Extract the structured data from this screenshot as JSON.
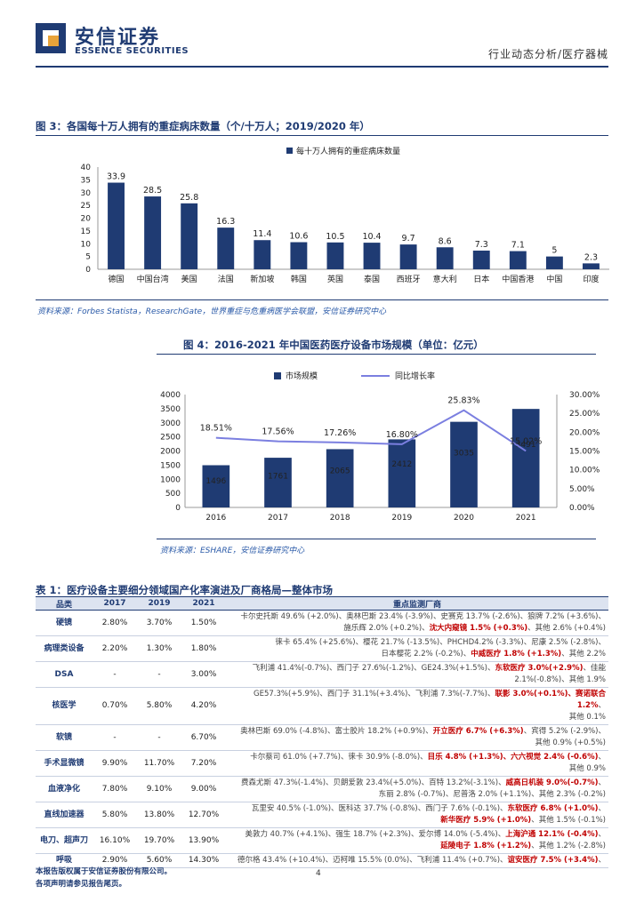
{
  "header": {
    "brand_cn": "安信证券",
    "brand_en": "ESSENCE SECURITIES",
    "report_type": "行业动态分析/医疗器械"
  },
  "figure3": {
    "title": "图 3：各国每十万人拥有的重症病床数量（个/十万人；2019/2020 年）",
    "source": "资料来源：Forbes Statista，ResearchGate，世界重症与危重病医学会联盟，安信证券研究中心",
    "chart_data": {
      "type": "bar",
      "categories": [
        "德国",
        "中国台湾",
        "美国",
        "法国",
        "新加坡",
        "韩国",
        "英国",
        "泰国",
        "西班牙",
        "意大利",
        "日本",
        "中国香港",
        "中国",
        "印度"
      ],
      "series": [
        {
          "name": "每十万人拥有的重症病床数量",
          "values": [
            33.9,
            28.5,
            25.8,
            16.3,
            11.4,
            10.6,
            10.5,
            10.4,
            9.7,
            8.6,
            7.3,
            7.1,
            5,
            2.3
          ]
        }
      ],
      "value_labels": [
        "33.9",
        "28.5",
        "25.8",
        "16.3",
        "11.4",
        "10.6",
        "10.5",
        "10.4",
        "9.7",
        "8.6",
        "7.3",
        "7.1",
        "5",
        "2.3"
      ],
      "yticks": [
        "0",
        "5",
        "10",
        "15",
        "20",
        "25",
        "30",
        "35",
        "40"
      ],
      "ylim": [
        0,
        40
      ],
      "color": "#1f3b73",
      "legend": "top"
    }
  },
  "figure4": {
    "title": "图 4：2016-2021 年中国医药医疗设备市场规模（单位：亿元）",
    "source": "资料来源：ESHARE，安信证券研究中心",
    "chart_data": {
      "type": "bar",
      "categories": [
        "2016",
        "2017",
        "2018",
        "2019",
        "2020",
        "2021"
      ],
      "series": [
        {
          "name": "市场规模",
          "type": "bar",
          "values": [
            1496,
            1761,
            2065,
            2412,
            3035,
            3491
          ],
          "labels": [
            "1496",
            "1761",
            "2065",
            "2412",
            "3035",
            "3491"
          ]
        },
        {
          "name": "同比增长率",
          "type": "line",
          "values": [
            18.51,
            17.56,
            17.26,
            16.8,
            25.83,
            15.02
          ],
          "labels": [
            "18.51%",
            "17.56%",
            "17.26%",
            "16.80%",
            "25.83%",
            "15.02%"
          ]
        }
      ],
      "yticks_left": [
        "0",
        "500",
        "1000",
        "1500",
        "2000",
        "2500",
        "3000",
        "3500",
        "4000"
      ],
      "yticks_right": [
        "0.00%",
        "5.00%",
        "10.00%",
        "15.00%",
        "20.00%",
        "25.00%",
        "30.00%"
      ],
      "ylim_left": [
        0,
        4000
      ],
      "ylim_right": [
        0,
        30
      ],
      "bar_color": "#1f3b73",
      "line_color": "#7b7fe0",
      "legend": "top"
    }
  },
  "table1": {
    "title": "表 1：医疗设备主要细分领域国产化率演进及厂商格局—整体市场",
    "headers": [
      "品类",
      "2017",
      "2019",
      "2021",
      "重点监测厂商"
    ],
    "rows": [
      {
        "cat": "硬镜",
        "y2017": "2.80%",
        "y2019": "3.70%",
        "y2021": "1.50%",
        "lines": [
          [
            {
              "t": "卡尔史托斯 49.6% (+2.0%)、奥林巴斯 23.4% (-3.9%)、史赛克 13.7% (-2.6%)、狼牌 7.2% (+3.6%)、"
            }
          ],
          [
            {
              "t": "施乐辉 2.0% (+0.2%)、"
            },
            {
              "t": "沈大内窥镜 1.5% (+0.3%)",
              "r": true
            },
            {
              "t": "、其他 2.6% (+0.4%)"
            }
          ]
        ]
      },
      {
        "cat": "病理类设备",
        "y2017": "2.20%",
        "y2019": "1.30%",
        "y2021": "1.80%",
        "lines": [
          [
            {
              "t": "徕卡 65.4% (+25.6%)、樱花 21.7% (-13.5%)、PHCHD4.2% (-3.3%)、尼康 2.5% (-2.8%)、"
            }
          ],
          [
            {
              "t": "日本樱花 2.2% (-0.2%)、"
            },
            {
              "t": "中威医疗 1.8% (+1.3%)",
              "r": true
            },
            {
              "t": "、其他 2.2%"
            }
          ]
        ]
      },
      {
        "cat": "DSA",
        "y2017": "-",
        "y2019": "-",
        "y2021": "3.00%",
        "lines": [
          [
            {
              "t": "飞利浦 41.4%(-0.7%)、西门子 27.6%(-1.2%)、GE24.3%(+1.5%)、"
            },
            {
              "t": "东软医疗 3.0%(+2.9%)",
              "r": true
            },
            {
              "t": "、佳能"
            }
          ],
          [
            {
              "t": "2.1%(-0.8%)、其他 1.9%"
            }
          ]
        ]
      },
      {
        "cat": "核医学",
        "y2017": "0.70%",
        "y2019": "5.80%",
        "y2021": "4.20%",
        "lines": [
          [
            {
              "t": "GE57.3%(+5.9%)、西门子 31.1%(+3.4%)、飞利浦 7.3%(-7.7%)、"
            },
            {
              "t": "联影 3.0%(+0.1%)、赛诺联合 1.2%",
              "r": true
            },
            {
              "t": "、"
            }
          ],
          [
            {
              "t": "其他 0.1%"
            }
          ]
        ]
      },
      {
        "cat": "软镜",
        "y2017": "-",
        "y2019": "-",
        "y2021": "6.70%",
        "lines": [
          [
            {
              "t": "奥林巴斯 69.0% (-4.8%)、富士胶片 18.2% (+0.9%)、"
            },
            {
              "t": "开立医疗 6.7% (+6.3%)",
              "r": true
            },
            {
              "t": "、宾得 5.2% (-2.9%)、"
            }
          ],
          [
            {
              "t": "其他 0.9% (+0.5%)"
            }
          ]
        ]
      },
      {
        "cat": "手术显微镜",
        "y2017": "9.90%",
        "y2019": "11.70%",
        "y2021": "7.20%",
        "lines": [
          [
            {
              "t": "卡尔蔡司 61.0% (+7.7%)、徕卡 30.9% (-8.0%)、"
            },
            {
              "t": "目乐 4.8% (+1.3%)、六六视觉 2.4% (-0.6%)",
              "r": true
            },
            {
              "t": "、"
            }
          ],
          [
            {
              "t": "其他 0.9%"
            }
          ]
        ]
      },
      {
        "cat": "血液净化",
        "y2017": "7.80%",
        "y2019": "9.10%",
        "y2021": "9.00%",
        "lines": [
          [
            {
              "t": "费森尤斯 47.3%(-1.4%)、贝朗爱敦 23.4%(+5.0%)、百特 13.2%(-3.1%)、"
            },
            {
              "t": "威高日机装 9.0%(-0.7%)",
              "r": true
            },
            {
              "t": "、"
            }
          ],
          [
            {
              "t": "东丽 2.8% (-0.7%)、尼普洛 2.0% (+1.1%)、其他 2.3% (-0.2%)"
            }
          ]
        ]
      },
      {
        "cat": "直线加速器",
        "y2017": "5.80%",
        "y2019": "13.80%",
        "y2021": "12.70%",
        "lines": [
          [
            {
              "t": "瓦里安 40.5% (-1.0%)、医科达 37.7% (-0.8%)、西门子 7.6% (-0.1%)、"
            },
            {
              "t": "东软医疗 6.8% (+1.0%)",
              "r": true
            },
            {
              "t": "、"
            }
          ],
          [
            {
              "t": "新华医疗 5.9% (+1.0%)",
              "r": true
            },
            {
              "t": "、其他 1.5% (-0.1%)"
            }
          ]
        ]
      },
      {
        "cat": "电刀、超声刀",
        "y2017": "16.10%",
        "y2019": "19.70%",
        "y2021": "13.90%",
        "lines": [
          [
            {
              "t": "美敦力 40.7% (+4.1%)、强生 18.7% (+2.3%)、爱尔博 14.0% (-5.4%)、"
            },
            {
              "t": "上海沪通 12.1% (-0.4%)",
              "r": true
            },
            {
              "t": "、"
            }
          ],
          [
            {
              "t": "延陵电子 1.8% (+1.2%)",
              "r": true
            },
            {
              "t": "、其他 1.2% (-2.8%)"
            }
          ]
        ]
      },
      {
        "cat": "呼吸",
        "y2017": "2.90%",
        "y2019": "5.60%",
        "y2021": "14.30%",
        "lines": [
          [
            {
              "t": "德尔格 43.4% (+10.4%)、迈柯唯 15.5% (0.0%)、飞利浦 11.4% (+0.7%)、"
            },
            {
              "t": "谊安医疗 7.5% (+3.4%)",
              "r": true
            },
            {
              "t": "、"
            }
          ]
        ]
      }
    ]
  },
  "footer": {
    "line1": "本报告版权属于安信证券股份有限公司。",
    "line2": "各项声明请参见报告尾页。",
    "page": "4"
  }
}
